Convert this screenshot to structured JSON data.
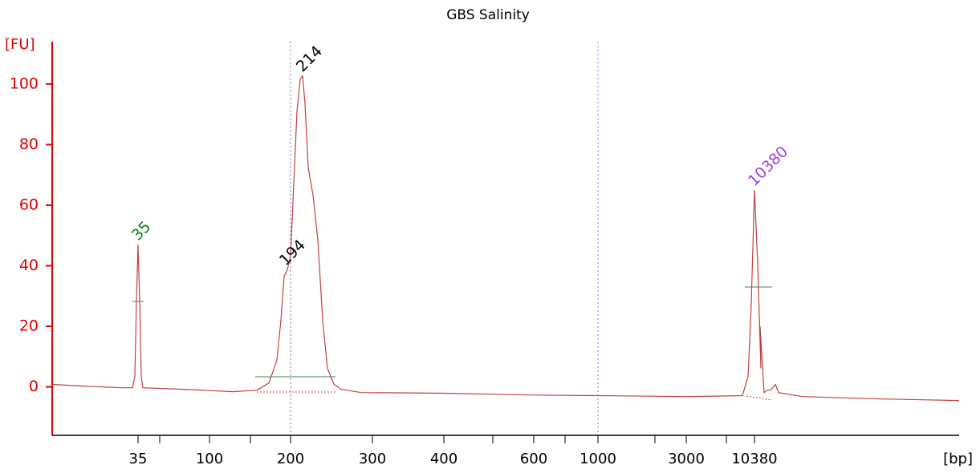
{
  "chart_data": {
    "type": "line",
    "title": "GBS Salinity",
    "ylabel": "[FU]",
    "xlabel": "[bp]",
    "ylim": [
      -16,
      114
    ],
    "yticks": [
      0,
      20,
      40,
      60,
      80,
      100
    ],
    "xlim": [
      0,
      17000
    ],
    "xticks": [
      35,
      100,
      200,
      300,
      400,
      600,
      1000,
      3000,
      10380
    ],
    "axis_color": "#e00000",
    "series": [
      {
        "color": "#c04040",
        "x": [
          0,
          11.4,
          27.8,
          32.7,
          33.7,
          34.3,
          35,
          36.5,
          37.9,
          39.4,
          77.3,
          128.7,
          158.4,
          173.3,
          183.2,
          188.1,
          192.1,
          196,
          200,
          203.9,
          207.8,
          211.8,
          214.7,
          217.6,
          221.6,
          227.5,
          233.3,
          239.2,
          245.1,
          253,
          261.8,
          286.3,
          400,
          600,
          1000,
          3000,
          9076,
          9684,
          10031,
          10380,
          10484,
          10588,
          10562,
          10692,
          10795,
          10899,
          11055,
          11158,
          11938,
          14534,
          17000
        ],
        "values": [
          0.8,
          0.3,
          -0.3,
          -0.3,
          3.4,
          27.3,
          47,
          27.3,
          3.4,
          -0.3,
          -0.8,
          -1.6,
          -1.1,
          1.3,
          8.8,
          22,
          36.6,
          38.7,
          43.2,
          67.1,
          91,
          101.6,
          102.7,
          93.6,
          72.4,
          63.1,
          48.5,
          22,
          6.1,
          0.8,
          -0.8,
          -1.9,
          -2.1,
          -2.7,
          -2.9,
          -3.2,
          -2.9,
          3.4,
          27.3,
          65,
          40.6,
          6.1,
          20,
          -1.9,
          -1.1,
          -1.1,
          0.8,
          -1.9,
          -3.2,
          -4,
          -4.5
        ]
      }
    ],
    "markers": [
      {
        "x": 200,
        "color": "#707090"
      },
      {
        "x": 1000,
        "color": "#7a7aff"
      }
    ],
    "peak_labels": [
      {
        "text": "35",
        "x": 35,
        "y": 47,
        "color": "#108010"
      },
      {
        "text": "194",
        "x": 194,
        "y": 38.7,
        "color": "#000000"
      },
      {
        "text": "214",
        "x": 214.7,
        "y": 102.7,
        "color": "#000000"
      },
      {
        "text": "10380",
        "x": 10380,
        "y": 65,
        "color": "#a040e0"
      }
    ]
  }
}
